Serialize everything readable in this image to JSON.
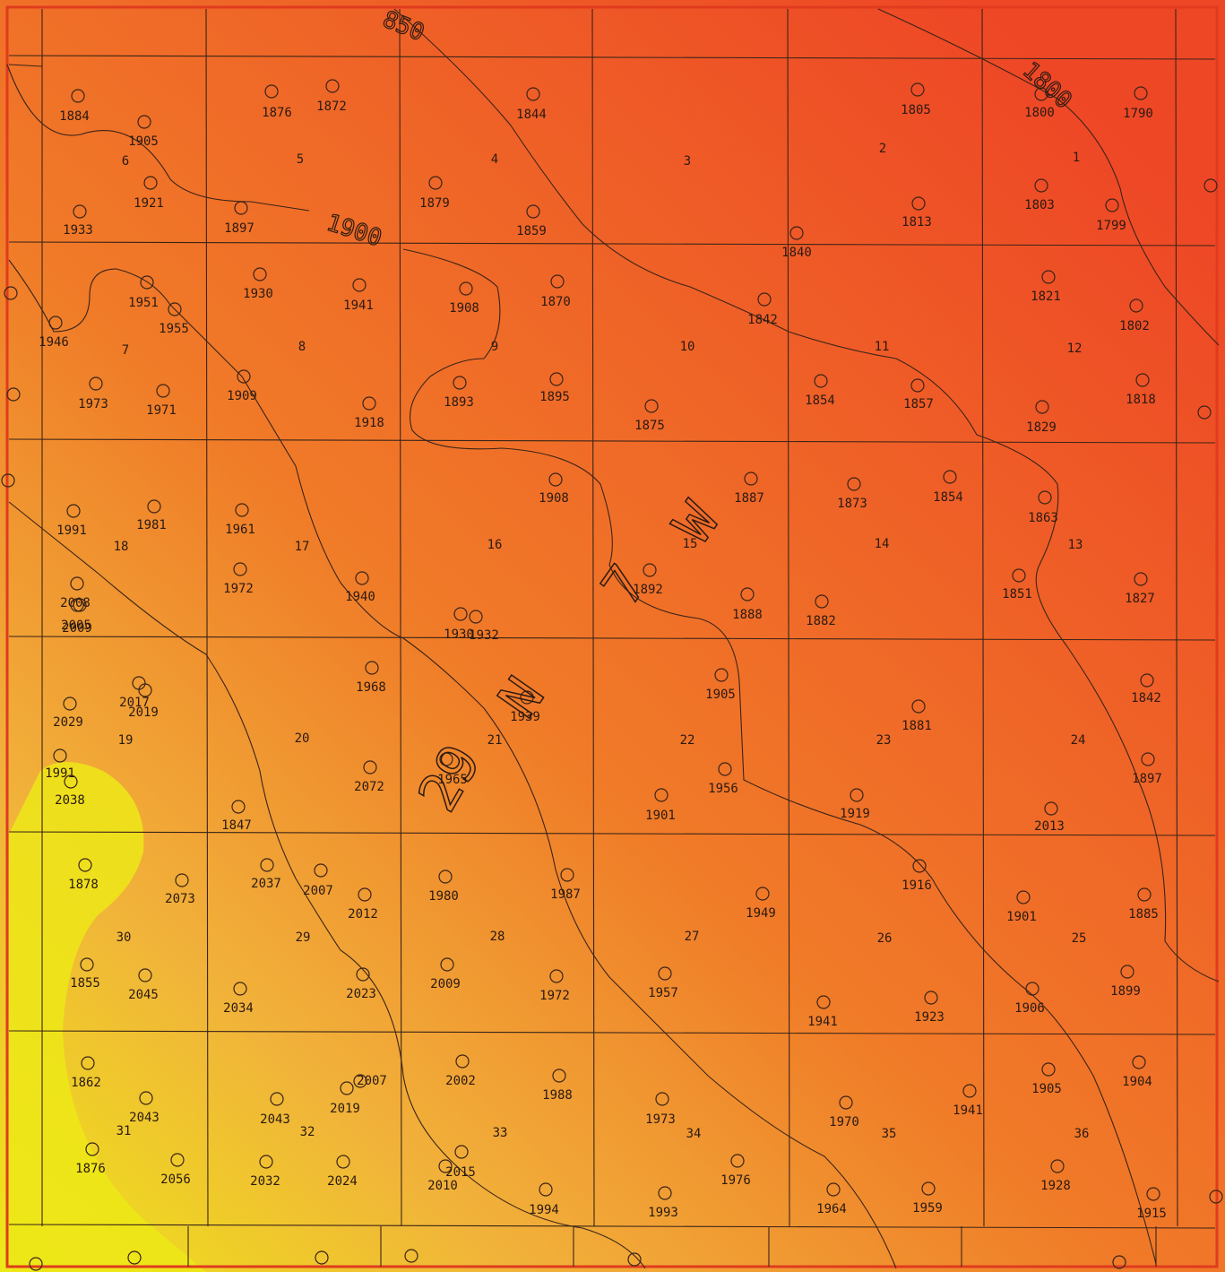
{
  "township_label": {
    "number": "29",
    "dir": "N",
    "range": "7",
    "rdir": "W"
  },
  "contour_labels": [
    "850",
    "1900",
    "1800"
  ],
  "colors": {
    "high": "#ee4726",
    "mid": "#f07b28",
    "low": "#f1b33a",
    "lowest": "#ede817",
    "lines": "#3a2418"
  },
  "sections": [
    "6",
    "5",
    "4",
    "3",
    "2",
    "1",
    "7",
    "8",
    "9",
    "10",
    "11",
    "12",
    "18",
    "17",
    "16",
    "15",
    "14",
    "13",
    "19",
    "20",
    "21",
    "22",
    "23",
    "24",
    "30",
    "29",
    "28",
    "27",
    "26",
    "25",
    "31",
    "32",
    "33",
    "34",
    "35",
    "36"
  ],
  "wells": [
    "1884",
    "1905",
    "1921",
    "1933",
    "1876",
    "1872",
    "1897",
    "1844",
    "1879",
    "1859",
    "1840",
    "1805",
    "1813",
    "1800",
    "1790",
    "1803",
    "1799",
    "1951",
    "1955",
    "1946",
    "1973",
    "1971",
    "1930",
    "1941",
    "1909",
    "1918",
    "1908",
    "1893",
    "1870",
    "1895",
    "1842",
    "1875",
    "1854",
    "1857",
    "1821",
    "1802",
    "1829",
    "1818",
    "1991",
    "1981",
    "1961",
    "1972",
    "1940",
    "1908",
    "1887",
    "1873",
    "1854",
    "1892",
    "1888",
    "1882",
    "1863",
    "1851",
    "1827",
    "2008",
    "2005",
    "2009",
    "1930",
    "1932",
    "1968",
    "1905",
    "1939",
    "1881",
    "1842",
    "2017",
    "2019",
    "2029",
    "1991",
    "2038",
    "2072",
    "1965",
    "1956",
    "1901",
    "1919",
    "1897",
    "1847",
    "2013",
    "1878",
    "2073",
    "2037",
    "2007",
    "2012",
    "1980",
    "1987",
    "1949",
    "1916",
    "1901",
    "1885",
    "1855",
    "2045",
    "2034",
    "2023",
    "2009",
    "1972",
    "1957",
    "1941",
    "1923",
    "1906",
    "1899",
    "1862",
    "2043",
    "2043",
    "2019",
    "2007",
    "2002",
    "1988",
    "1973",
    "1970",
    "1941",
    "1905",
    "1904",
    "1876",
    "2056",
    "2032",
    "2024",
    "2015",
    "2010",
    "1994",
    "1993",
    "1976",
    "1964",
    "1959",
    "1928",
    "1915",
    "1884"
  ]
}
